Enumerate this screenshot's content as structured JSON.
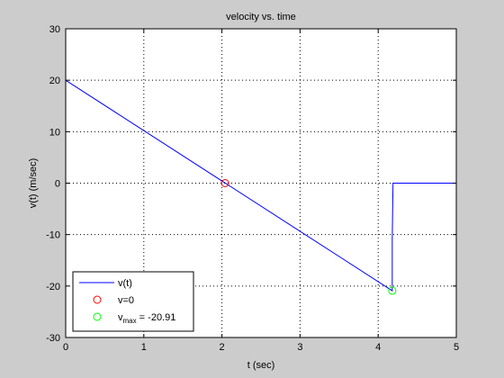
{
  "chart_data": {
    "type": "line",
    "title": "velocity vs. time",
    "xlabel": "t (sec)",
    "ylabel": "v(t) (m/sec)",
    "xlim": [
      0,
      5
    ],
    "ylim": [
      -30,
      30
    ],
    "xticks": [
      0,
      1,
      2,
      3,
      4,
      5
    ],
    "yticks": [
      -30,
      -20,
      -10,
      0,
      10,
      20,
      30
    ],
    "xtick_labels": [
      "0",
      "1",
      "2",
      "3",
      "4",
      "5"
    ],
    "ytick_labels": [
      "-30",
      "-20",
      "-10",
      "0",
      "10",
      "20",
      "30"
    ],
    "grid": true,
    "legend_position": "bottom-left",
    "series": [
      {
        "name": "v(t)",
        "style": "line",
        "color": "#0000ff",
        "x": [
          0,
          4.18,
          4.18,
          4.19,
          4.2,
          5
        ],
        "y": [
          20,
          -20.91,
          -11,
          0,
          0,
          0
        ]
      },
      {
        "name": "v=0",
        "style": "marker-circle",
        "color": "#ff0000",
        "x": [
          2.04
        ],
        "y": [
          0
        ]
      },
      {
        "name": "v_max = -20.91",
        "legend_main": "v",
        "legend_sub": "max",
        "legend_rest": " = -20.91",
        "style": "marker-circle",
        "color": "#00ff00",
        "x": [
          4.18
        ],
        "y": [
          -20.91
        ]
      }
    ]
  }
}
